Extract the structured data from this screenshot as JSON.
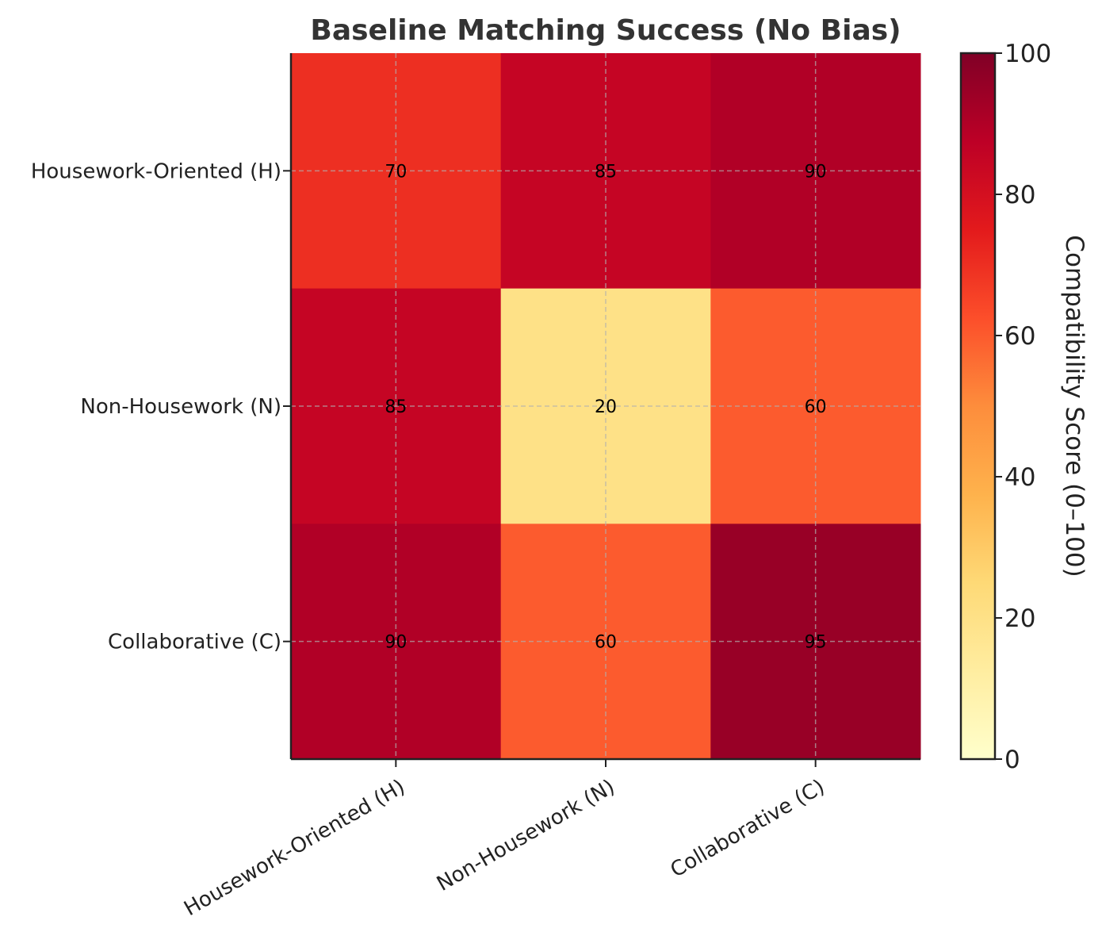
{
  "chart_data": {
    "type": "heatmap",
    "title": "Baseline Matching Success (No Bias)",
    "rows": [
      "Housework-Oriented (H)",
      "Non-Housework (N)",
      "Collaborative (C)"
    ],
    "columns": [
      "Housework-Oriented (H)",
      "Non-Housework (N)",
      "Collaborative (C)"
    ],
    "values": [
      [
        70,
        85,
        90
      ],
      [
        85,
        20,
        60
      ],
      [
        90,
        60,
        95
      ]
    ],
    "value_range": [
      0,
      100
    ],
    "colormap": "YlOrRd",
    "colorbar": {
      "label": "Compatibility Score (0–100)",
      "ticks": [
        0,
        20,
        40,
        60,
        80,
        100
      ]
    },
    "grid": true
  }
}
